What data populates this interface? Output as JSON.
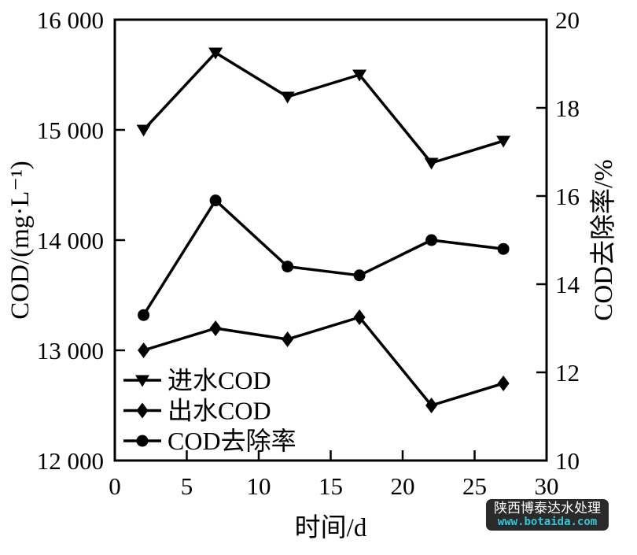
{
  "chart_data": {
    "type": "line",
    "x": [
      2,
      7,
      12,
      17,
      22,
      27
    ],
    "series": [
      {
        "name": "进水COD",
        "axis": "left",
        "marker": "triangle-down",
        "values": [
          15000,
          15700,
          15300,
          15500,
          14700,
          14900
        ]
      },
      {
        "name": "出水COD",
        "axis": "left",
        "marker": "diamond",
        "values": [
          13000,
          13200,
          13100,
          13300,
          12500,
          12700
        ]
      },
      {
        "name": "COD去除率",
        "axis": "right",
        "marker": "circle",
        "values": [
          13.3,
          15.9,
          14.4,
          14.2,
          15.0,
          14.8
        ]
      }
    ],
    "x_axis": {
      "label": "时间/d",
      "min": 0,
      "max": 30,
      "ticks": [
        0,
        5,
        10,
        15,
        20,
        25,
        30
      ],
      "tick_labels": [
        "0",
        "5",
        "10",
        "15",
        "20",
        "25",
        "30"
      ]
    },
    "y_left": {
      "label": "COD/(mg·L⁻¹)",
      "min": 12000,
      "max": 16000,
      "ticks": [
        12000,
        13000,
        14000,
        15000,
        16000
      ],
      "tick_labels": [
        "12 000",
        "13 000",
        "14 000",
        "15 000",
        "16 000"
      ]
    },
    "y_right": {
      "label": "COD去除率/%",
      "min": 10,
      "max": 20,
      "ticks": [
        10,
        12,
        14,
        16,
        18,
        20
      ],
      "tick_labels": [
        "10",
        "12",
        "14",
        "16",
        "18",
        "20"
      ]
    },
    "line_color": "#000000",
    "grid": false,
    "legend_position": "inside-bottom-left"
  },
  "watermark": {
    "line1": "陕西博泰达水处理",
    "line2": "www.botaida.com",
    "bg_color": "#2a2a2a",
    "line1_color": "#ffffff",
    "line2_color": "#2fc7d8"
  }
}
